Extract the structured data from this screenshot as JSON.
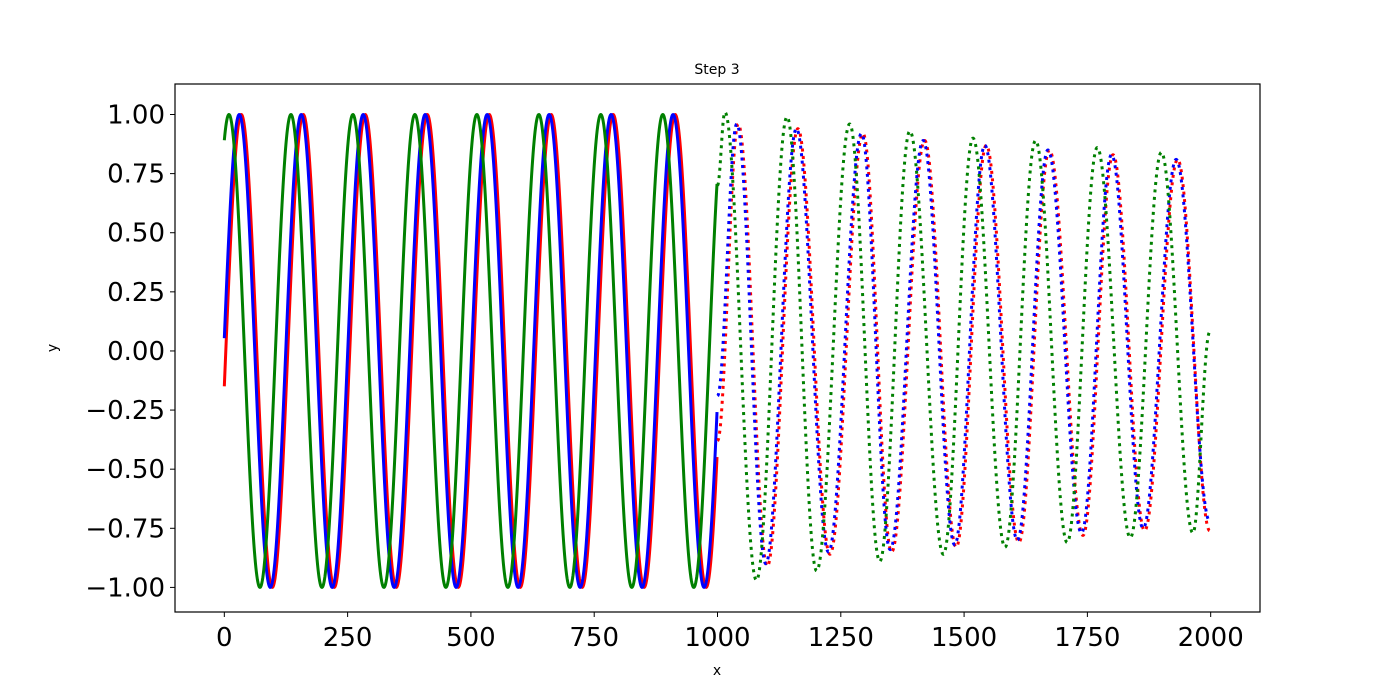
{
  "chart_data": {
    "type": "line",
    "title": "Step 3",
    "xlabel": "x",
    "ylabel": "y",
    "xlim": [
      -100,
      2100
    ],
    "ylim": [
      -1.104,
      1.129
    ],
    "xticks": [
      0,
      250,
      500,
      750,
      1000,
      1250,
      1500,
      1750,
      2000
    ],
    "xtick_labels": [
      "0",
      "250",
      "500",
      "750",
      "1000",
      "1250",
      "1500",
      "1750",
      "2000"
    ],
    "yticks": [
      -1.0,
      -0.75,
      -0.5,
      -0.25,
      0.0,
      0.25,
      0.5,
      0.75,
      1.0
    ],
    "ytick_labels": [
      "−1.00",
      "−0.75",
      "−0.50",
      "−0.25",
      "0.00",
      "0.25",
      "0.50",
      "0.75",
      "1.00"
    ],
    "grid": false,
    "legend": "none",
    "series": [
      {
        "color": "#ff0000",
        "style": "solid",
        "x_range": [
          0,
          999
        ],
        "function": "sin",
        "amplitude": 1,
        "frequency": 0.05,
        "phase": -0.15
      },
      {
        "color": "#0000ff",
        "style": "solid",
        "x_range": [
          0,
          999
        ],
        "function": "sin",
        "amplitude": 1,
        "frequency": 0.05,
        "phase": 0.054
      },
      {
        "color": "#008000",
        "style": "solid",
        "x_range": [
          0,
          999
        ],
        "function": "sin",
        "amplitude": 1,
        "frequency": 0.05,
        "phase": 1.1
      },
      {
        "color": "#ff0000",
        "style": "dotted",
        "extrema": [
          [
            1000,
            -0.38
          ],
          [
            1042,
            0.96
          ],
          [
            1101,
            -0.91
          ],
          [
            1163,
            0.94
          ],
          [
            1228,
            -0.86
          ],
          [
            1295,
            0.92
          ],
          [
            1353,
            -0.85
          ],
          [
            1420,
            0.89
          ],
          [
            1484,
            -0.83
          ],
          [
            1545,
            0.87
          ],
          [
            1611,
            -0.81
          ],
          [
            1673,
            0.85
          ],
          [
            1741,
            -0.78
          ],
          [
            1802,
            0.83
          ],
          [
            1866,
            -0.76
          ],
          [
            1933,
            0.81
          ],
          [
            1998,
            -0.76
          ]
        ]
      },
      {
        "color": "#0000ff",
        "style": "dotted",
        "extrema": [
          [
            1000,
            -0.19
          ],
          [
            1039,
            0.96
          ],
          [
            1098,
            -0.9
          ],
          [
            1160,
            0.94
          ],
          [
            1225,
            -0.85
          ],
          [
            1292,
            0.92
          ],
          [
            1350,
            -0.84
          ],
          [
            1417,
            0.89
          ],
          [
            1481,
            -0.82
          ],
          [
            1542,
            0.87
          ],
          [
            1608,
            -0.8
          ],
          [
            1670,
            0.85
          ],
          [
            1738,
            -0.77
          ],
          [
            1799,
            0.83
          ],
          [
            1863,
            -0.75
          ],
          [
            1930,
            0.81
          ],
          [
            1998,
            -0.72
          ]
        ]
      },
      {
        "color": "#008000",
        "style": "dotted",
        "extrema": [
          [
            1000,
            0.7
          ],
          [
            1015,
            1.01
          ],
          [
            1079,
            -0.97
          ],
          [
            1141,
            0.99
          ],
          [
            1201,
            -0.93
          ],
          [
            1268,
            0.96
          ],
          [
            1329,
            -0.89
          ],
          [
            1390,
            0.93
          ],
          [
            1458,
            -0.86
          ],
          [
            1518,
            0.9
          ],
          [
            1583,
            -0.83
          ],
          [
            1645,
            0.89
          ],
          [
            1709,
            -0.81
          ],
          [
            1770,
            0.86
          ],
          [
            1837,
            -0.79
          ],
          [
            1900,
            0.84
          ],
          [
            1964,
            -0.77
          ],
          [
            1998,
            0.08
          ]
        ]
      }
    ]
  }
}
